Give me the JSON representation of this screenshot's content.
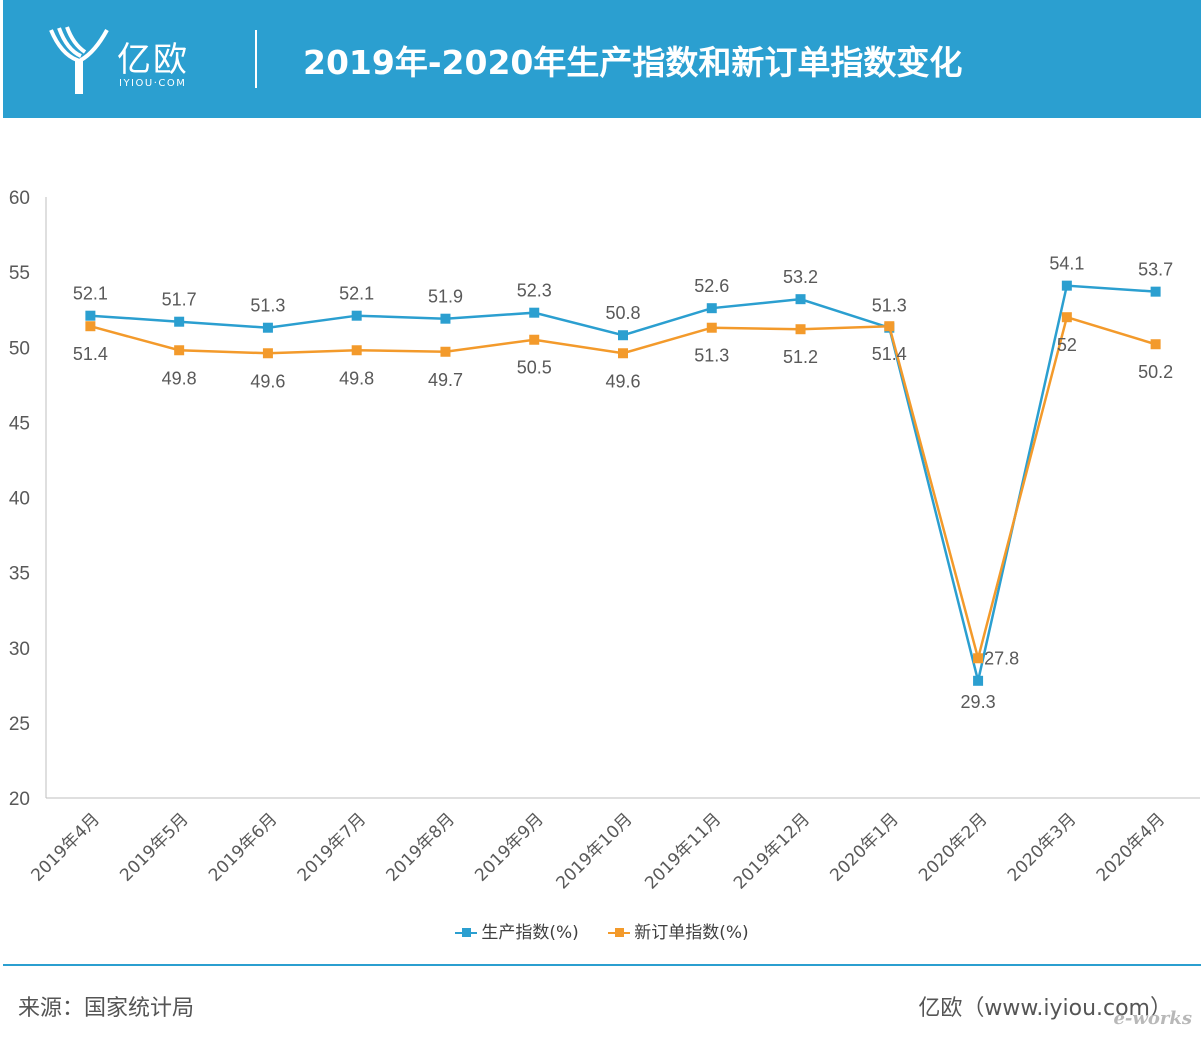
{
  "header": {
    "logo_text": "亿欧",
    "logo_sub": "IYIOU·COM",
    "title": "2019年-2020年生产指数和新订单指数变化"
  },
  "footer": {
    "source": "来源：国家统计局",
    "credit": "亿欧（www.iyiou.com）",
    "watermark": "e-works"
  },
  "chart_data": {
    "type": "line",
    "categories": [
      "2019年4月",
      "2019年5月",
      "2019年6月",
      "2019年7月",
      "2019年8月",
      "2019年9月",
      "2019年10月",
      "2019年11月",
      "2019年12月",
      "2020年1月",
      "2020年2月",
      "2020年3月",
      "2020年4月"
    ],
    "series": [
      {
        "name": "生产指数(%)",
        "color": "#2b9fd0",
        "values": [
          52.1,
          51.7,
          51.3,
          52.1,
          51.9,
          52.3,
          50.8,
          52.6,
          53.2,
          51.3,
          27.8,
          54.1,
          53.7
        ],
        "labels": [
          "52.1",
          "51.7",
          "51.3",
          "52.1",
          "51.9",
          "52.3",
          "50.8",
          "52.6",
          "53.2",
          "51.3",
          "27.8",
          "54.1",
          "53.7"
        ]
      },
      {
        "name": "新订单指数(%)",
        "color": "#f39a2b",
        "values": [
          51.4,
          49.8,
          49.6,
          49.8,
          49.7,
          50.5,
          49.6,
          51.3,
          51.2,
          51.4,
          29.3,
          52,
          50.2
        ],
        "labels": [
          "51.4",
          "49.8",
          "49.6",
          "49.8",
          "49.7",
          "50.5",
          "49.6",
          "51.3",
          "51.2",
          "51.4",
          "29.3",
          "52",
          "50.2"
        ]
      }
    ],
    "ylim": [
      20,
      60
    ],
    "yticks": [
      "20",
      "25",
      "30",
      "35",
      "40",
      "45",
      "50",
      "55",
      "60"
    ],
    "grid": false,
    "legend": "bottom"
  }
}
